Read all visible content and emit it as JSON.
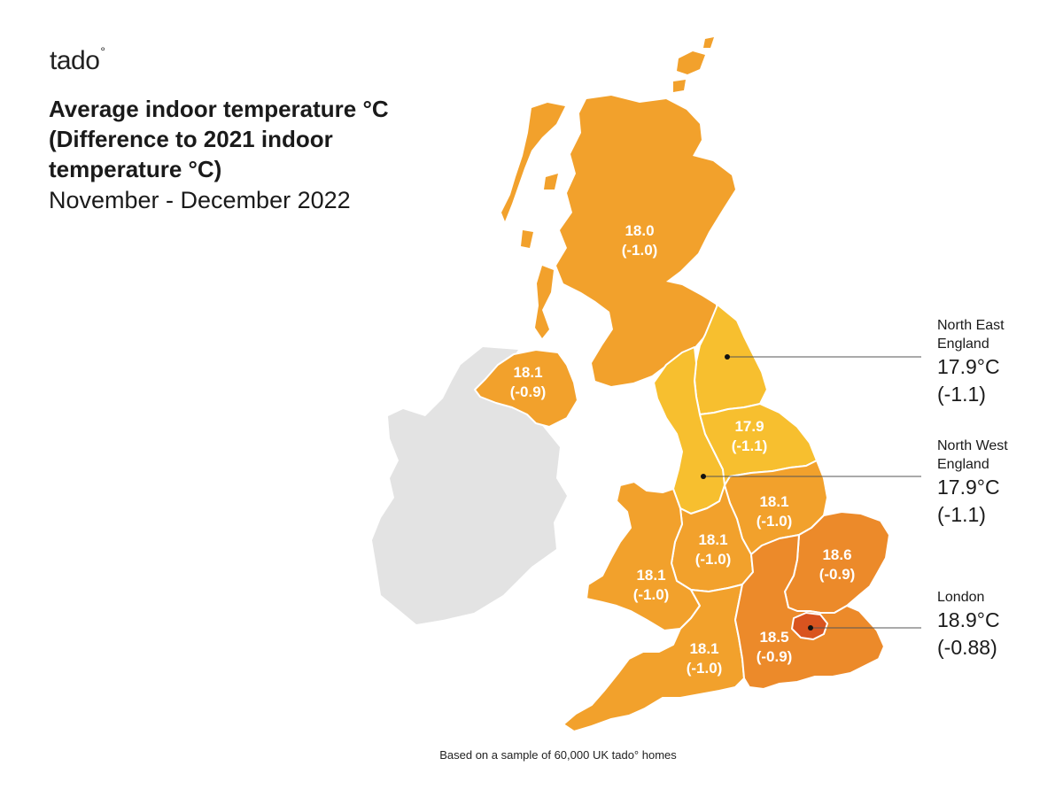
{
  "logo": {
    "text": "tado",
    "degree": "°"
  },
  "title": {
    "line1": "Average indoor temperature °C",
    "line2": "(Difference to 2021 indoor",
    "line3": "temperature °C)",
    "subtitle": "November - December 2022"
  },
  "colors": {
    "ireland": "#e3e3e3",
    "scotland": "#f2a12c",
    "northern_ireland": "#f2a12c",
    "north_east": "#f7bf2f",
    "north_west": "#f7bf2f",
    "yorkshire": "#f7bf2f",
    "midlands": "#f2a12c",
    "wales": "#f2a12c",
    "south_west": "#f2a12c",
    "south_east": "#ec8a2a",
    "east": "#ec8a2a",
    "london": "#d9541f",
    "borders": "#ffffff"
  },
  "regions": {
    "scotland": {
      "temp": "18.0",
      "diff": "(-1.0)"
    },
    "northern_ireland": {
      "temp": "18.1",
      "diff": "(-0.9)"
    },
    "yorkshire": {
      "temp": "17.9",
      "diff": "(-1.1)"
    },
    "east_midlands": {
      "temp": "18.1",
      "diff": "(-1.0)"
    },
    "west_midlands": {
      "temp": "18.1",
      "diff": "(-1.0)"
    },
    "wales": {
      "temp": "18.1",
      "diff": "(-1.0)"
    },
    "south_west": {
      "temp": "18.1",
      "diff": "(-1.0)"
    },
    "east": {
      "temp": "18.6",
      "diff": "(-0.9)"
    },
    "south_east": {
      "temp": "18.5",
      "diff": "(-0.9)"
    }
  },
  "callouts": {
    "north_east": {
      "name1": "North East",
      "name2": "England",
      "temp": "17.9°C",
      "diff": "(-1.1)"
    },
    "north_west": {
      "name1": "North West",
      "name2": "England",
      "temp": "17.9°C",
      "diff": "(-1.1)"
    },
    "london": {
      "name1": "London",
      "temp": "18.9°C",
      "diff": "(-0.88)"
    }
  },
  "footnote": "Based on a sample of 60,000 UK tado° homes"
}
